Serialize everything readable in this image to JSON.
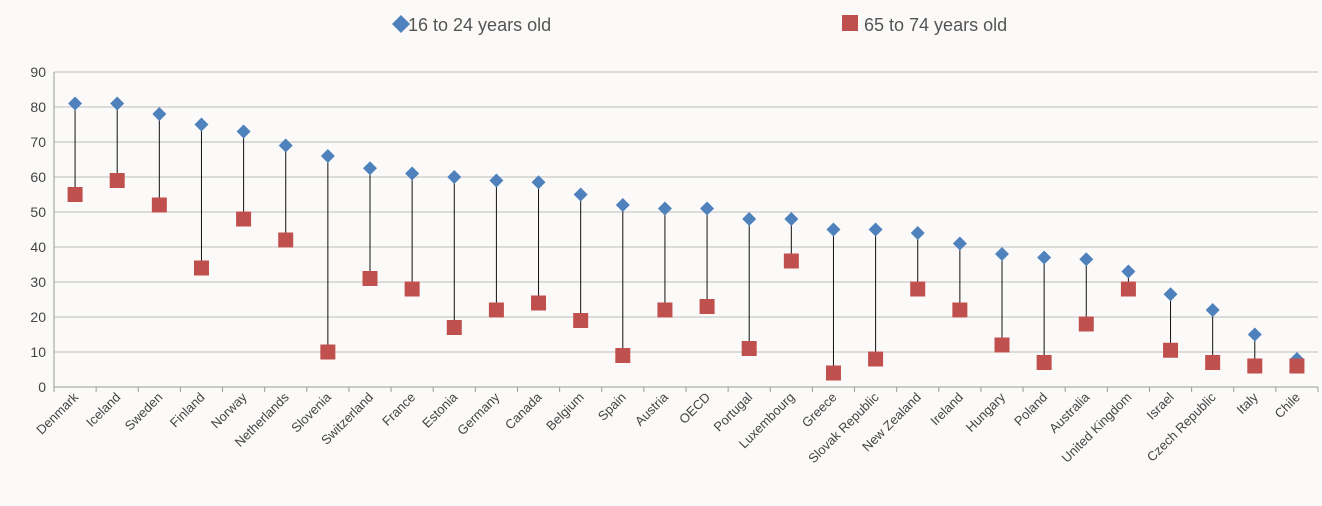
{
  "chart_data": {
    "type": "scatter",
    "categories": [
      "Denmark",
      "Iceland",
      "Sweden",
      "Finland",
      "Norway",
      "Netherlands",
      "Slovenia",
      "Switzerland",
      "France",
      "Estonia",
      "Germany",
      "Canada",
      "Belgium",
      "Spain",
      "Austria",
      "OECD",
      "Portugal",
      "Luxembourg",
      "Greece",
      "Slovak Republic",
      "New Zealand",
      "Ireland",
      "Hungary",
      "Poland",
      "Australia",
      "United Kingdom",
      "Israel",
      "Czech Republic",
      "Italy",
      "Chile"
    ],
    "series": [
      {
        "name": "16 to 24 years old",
        "marker": "diamond",
        "color": "#4f81bd",
        "values": [
          81,
          81,
          78,
          75,
          73,
          69,
          66,
          62.5,
          61,
          60,
          59,
          58.5,
          55,
          52,
          51,
          51,
          48,
          48,
          45,
          45,
          44,
          41,
          38,
          37,
          36.5,
          33,
          26.5,
          22,
          15,
          8
        ]
      },
      {
        "name": "65 to 74 years old",
        "marker": "square",
        "color": "#c0504d",
        "values": [
          55,
          59,
          52,
          34,
          48,
          42,
          10,
          31,
          28,
          17,
          22,
          24,
          19,
          9,
          22,
          23,
          11,
          36,
          4,
          8,
          28,
          22,
          12,
          7,
          18,
          28,
          10.5,
          7,
          6,
          6
        ]
      }
    ],
    "y_ticks": [
      "0",
      "10",
      "20",
      "30",
      "40",
      "50",
      "60",
      "70",
      "80",
      "90"
    ],
    "ylim": [
      0,
      90
    ],
    "grid": true,
    "legend_position": "top",
    "connector": "vertical-line-between-series"
  }
}
